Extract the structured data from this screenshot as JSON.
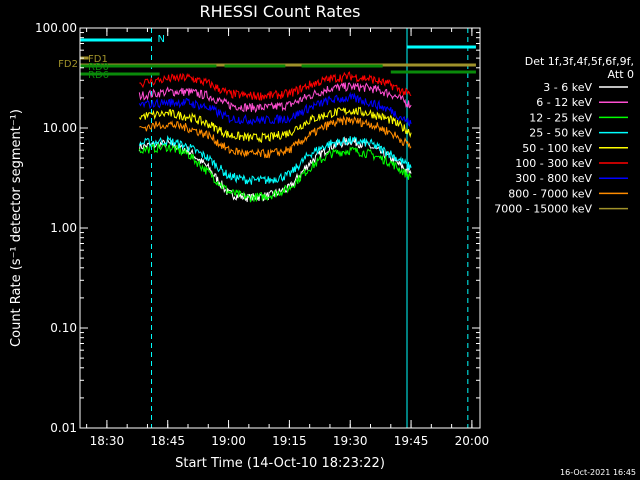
{
  "chart_data": {
    "type": "line",
    "title": "RHESSI Count Rates",
    "xlabel": "Start Time (14-Oct-10 18:23:22)",
    "ylabel": "Count Rate (s⁻¹ detector segment⁻¹)",
    "yscale": "log",
    "ylim": [
      0.01,
      100
    ],
    "y_ticks": [
      "0.01",
      "0.10",
      "1.00",
      "10.00",
      "100.00"
    ],
    "x_ticks": [
      "18:30",
      "18:45",
      "19:00",
      "19:15",
      "19:30",
      "19:45",
      "20:00"
    ],
    "xlim": [
      "18:23:22",
      "20:02:00"
    ],
    "legend_header": [
      "Det 1f,3f,4f,5f,6f,9f,",
      "Att 0"
    ],
    "legend_position": "right",
    "series": [
      {
        "name": "3 - 6 keV",
        "color": "#ffffff",
        "x": [
          "18:38",
          "18:45",
          "18:50",
          "18:55",
          "19:00",
          "19:05",
          "19:10",
          "19:15",
          "19:20",
          "19:25",
          "19:30",
          "19:35",
          "19:40",
          "19:45"
        ],
        "values": [
          6.5,
          7.0,
          6.0,
          4.0,
          2.2,
          2.0,
          2.1,
          2.5,
          4.5,
          6.5,
          7.5,
          6.5,
          5.0,
          3.5
        ]
      },
      {
        "name": "6 - 12 keV",
        "color": "#ff4fd2",
        "x": [
          "18:38",
          "18:45",
          "18:50",
          "18:55",
          "19:00",
          "19:05",
          "19:10",
          "19:15",
          "19:20",
          "19:25",
          "19:30",
          "19:35",
          "19:40",
          "19:45"
        ],
        "values": [
          21,
          23,
          23,
          21,
          17,
          16,
          16,
          17,
          21,
          25,
          26,
          25,
          22,
          17
        ]
      },
      {
        "name": "12 - 25 keV",
        "color": "#00ff00",
        "x": [
          "18:38",
          "18:45",
          "18:50",
          "18:55",
          "19:00",
          "19:05",
          "19:10",
          "19:15",
          "19:20",
          "19:25",
          "19:30",
          "19:35",
          "19:40",
          "19:45"
        ],
        "values": [
          6.0,
          6.5,
          5.5,
          3.6,
          2.3,
          2.0,
          2.1,
          2.5,
          4.0,
          5.5,
          6.0,
          5.5,
          4.5,
          3.2
        ]
      },
      {
        "name": "25 - 50 keV",
        "color": "#00ffff",
        "x": [
          "18:38",
          "18:45",
          "18:50",
          "18:55",
          "19:00",
          "19:05",
          "19:10",
          "19:15",
          "19:20",
          "19:25",
          "19:30",
          "19:35",
          "19:40",
          "19:45"
        ],
        "values": [
          7.0,
          7.5,
          6.5,
          5.0,
          3.3,
          3.0,
          3.0,
          3.4,
          5.5,
          7.0,
          7.5,
          7.0,
          5.5,
          4.0
        ]
      },
      {
        "name": "50 - 100 keV",
        "color": "#ffff00",
        "x": [
          "18:38",
          "18:45",
          "18:50",
          "18:55",
          "19:00",
          "19:05",
          "19:10",
          "19:15",
          "19:20",
          "19:25",
          "19:30",
          "19:35",
          "19:40",
          "19:45"
        ],
        "values": [
          13,
          14,
          13,
          11,
          8.5,
          8.0,
          8.0,
          9.0,
          12,
          14,
          15,
          14,
          12,
          9
        ]
      },
      {
        "name": "100 - 300 keV",
        "color": "#ff0000",
        "x": [
          "18:38",
          "18:45",
          "18:50",
          "18:55",
          "19:00",
          "19:05",
          "19:10",
          "19:15",
          "19:20",
          "19:25",
          "19:30",
          "19:35",
          "19:40",
          "19:45"
        ],
        "values": [
          28,
          31,
          32,
          28,
          22,
          21,
          21,
          22,
          27,
          31,
          33,
          31,
          27,
          21
        ]
      },
      {
        "name": "300 - 800 keV",
        "color": "#0000ff",
        "x": [
          "18:38",
          "18:45",
          "18:50",
          "18:55",
          "19:00",
          "19:05",
          "19:10",
          "19:15",
          "19:20",
          "19:25",
          "19:30",
          "19:35",
          "19:40",
          "19:45"
        ],
        "values": [
          17,
          18,
          18,
          16,
          12.5,
          12,
          12,
          12.5,
          16,
          19,
          20,
          18,
          15,
          11
        ]
      },
      {
        "name": "800 - 7000 keV",
        "color": "#ff8c00",
        "x": [
          "18:38",
          "18:45",
          "18:50",
          "18:55",
          "19:00",
          "19:05",
          "19:10",
          "19:15",
          "19:20",
          "19:25",
          "19:30",
          "19:35",
          "19:40",
          "19:45"
        ],
        "values": [
          10,
          11,
          10,
          8.5,
          6.0,
          5.5,
          5.5,
          6.0,
          8.5,
          11,
          12,
          11,
          9,
          6.5
        ]
      },
      {
        "name": "7000 - 15000 keV",
        "color": "#a0922a",
        "x": [],
        "values": []
      }
    ],
    "annotations": [
      {
        "label": "N",
        "color": "#00ffff",
        "start": "18:23:22",
        "end": "18:41"
      },
      {
        "label": "N",
        "color": "#00ffff",
        "start": "19:44",
        "end": "20:01",
        "show_label": false
      },
      {
        "label": "FD1",
        "color": "#a0922a",
        "start": "18:23:22",
        "end": "18:25:30"
      },
      {
        "label": "FD2",
        "color": "#a0922a",
        "start": "18:23:22",
        "end": "20:01"
      },
      {
        "label": "RD0",
        "color": "#0a8a0a",
        "start": "18:23:22",
        "end": "18:57"
      },
      {
        "label": "",
        "color": "#0a8a0a",
        "start": "18:59",
        "end": "19:14"
      },
      {
        "label": "",
        "color": "#0a8a0a",
        "start": "19:18",
        "end": "19:38"
      },
      {
        "label": "",
        "color": "#0a8a0a",
        "start": "19:40",
        "end": "20:01"
      },
      {
        "label": "RD6",
        "color": "#0a8a0a",
        "start": "18:23:22",
        "end": "18:43"
      }
    ],
    "vertical_markers": [
      {
        "time": "18:41",
        "color": "#00ffff",
        "style": "dashed"
      },
      {
        "time": "19:44",
        "color": "#00ffff",
        "style": "solid"
      },
      {
        "time": "19:59",
        "color": "#00ffff",
        "style": "dashed"
      }
    ],
    "axis_color": "#ffffff",
    "background": "#000000"
  },
  "footer": {
    "timestamp": "16-Oct-2021 16:45"
  }
}
